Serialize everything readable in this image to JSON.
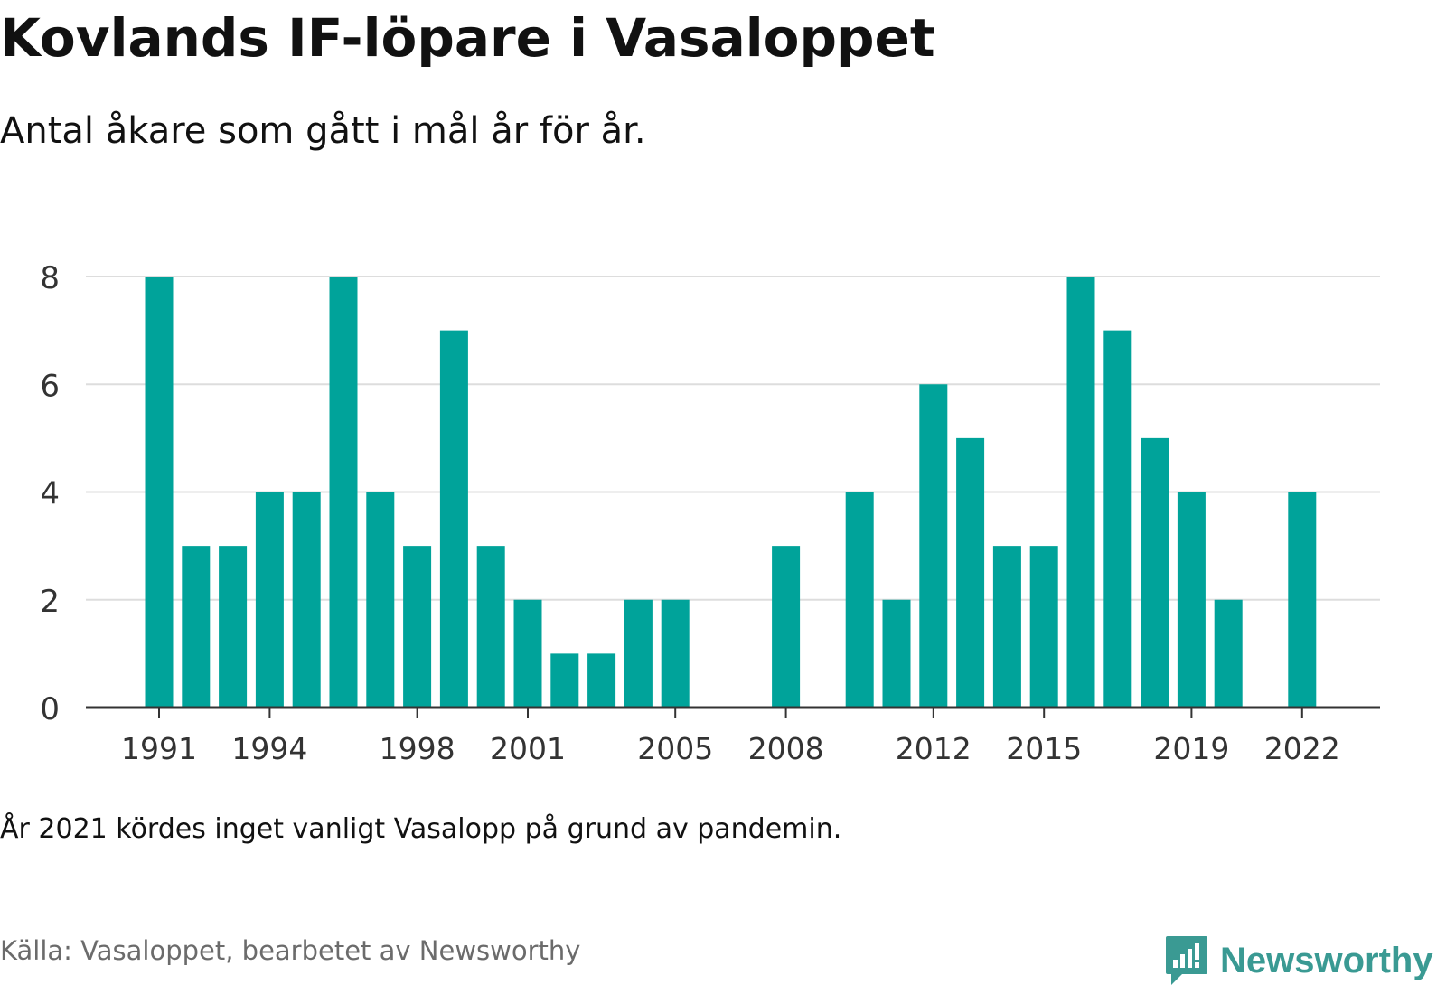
{
  "header": {
    "title": "Kovlands IF-löpare i Vasaloppet",
    "subtitle": "Antal åkare som gått i mål år för år."
  },
  "footer": {
    "note": "År 2021 kördes inget vanligt Vasalopp på grund av pandemin.",
    "source": "Källa: Vasaloppet, bearbetet av Newsworthy",
    "brand": "Newsworthy",
    "brand_icon": "bar-chart-speech-icon"
  },
  "colors": {
    "bar": "#00a39a",
    "grid": "#dddddd",
    "axis": "#333333",
    "brand": "#3a9a93"
  },
  "chart_data": {
    "type": "bar",
    "title": "Kovlands IF-löpare i Vasaloppet",
    "subtitle": "Antal åkare som gått i mål år för år.",
    "categories": [
      1991,
      1992,
      1993,
      1994,
      1995,
      1996,
      1997,
      1998,
      1999,
      2000,
      2001,
      2002,
      2003,
      2004,
      2005,
      2006,
      2007,
      2008,
      2009,
      2010,
      2011,
      2012,
      2013,
      2014,
      2015,
      2016,
      2017,
      2018,
      2019,
      2020,
      2021,
      2022
    ],
    "values": [
      8,
      3,
      3,
      4,
      4,
      8,
      4,
      3,
      7,
      3,
      2,
      1,
      1,
      2,
      2,
      0,
      0,
      3,
      0,
      4,
      2,
      6,
      5,
      3,
      3,
      8,
      7,
      5,
      4,
      2,
      0,
      4
    ],
    "x_tick_labels": [
      "1991",
      "1994",
      "1998",
      "2001",
      "2005",
      "2008",
      "2012",
      "2015",
      "2019",
      "2022"
    ],
    "y_tick_labels": [
      "0",
      "2",
      "4",
      "6",
      "8"
    ],
    "ylim": [
      0,
      8
    ],
    "xlabel": "",
    "ylabel": "",
    "grid": true,
    "legend": "none"
  }
}
